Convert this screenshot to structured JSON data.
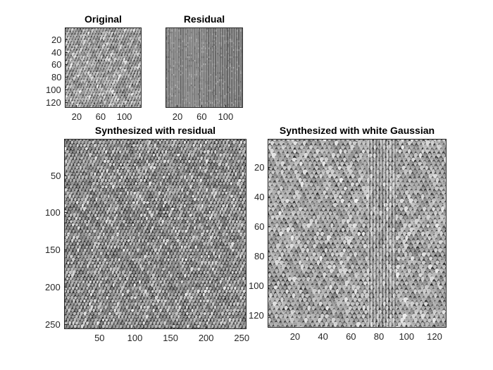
{
  "chart_data": [
    {
      "type": "heatmap",
      "title": "Original",
      "colormap": "gray",
      "xlim": [
        0.5,
        128.5
      ],
      "ylim": [
        0.5,
        128.5
      ],
      "y_reversed": true,
      "xticks": [
        20,
        60,
        100
      ],
      "xtick_labels": [
        "20",
        "60",
        "100"
      ],
      "yticks": [
        20,
        40,
        60,
        80,
        100,
        120
      ],
      "ytick_labels": [
        "20",
        "40",
        "60",
        "80",
        "100",
        "120"
      ],
      "texture": {
        "pattern": "dense oblique dot lattice",
        "contrast": "high",
        "brightness": "mid-gray"
      }
    },
    {
      "type": "heatmap",
      "title": "Residual",
      "colormap": "gray",
      "xlim": [
        0.5,
        128.5
      ],
      "ylim": [
        0.5,
        128.5
      ],
      "y_reversed": true,
      "xticks": [
        20,
        60,
        100
      ],
      "xtick_labels": [
        "20",
        "60",
        "100"
      ],
      "yticks": [],
      "ytick_labels": [],
      "texture": {
        "pattern": "vertical stripes",
        "contrast": "medium",
        "brightness": "light-gray"
      }
    },
    {
      "type": "heatmap",
      "title": "Synthesized with residual",
      "colormap": "gray",
      "xlim": [
        0.5,
        256.5
      ],
      "ylim": [
        0.5,
        256.5
      ],
      "y_reversed": true,
      "xticks": [
        50,
        100,
        150,
        200,
        250
      ],
      "xtick_labels": [
        "50",
        "100",
        "150",
        "200",
        "250"
      ],
      "yticks": [
        50,
        100,
        150,
        200,
        250
      ],
      "ytick_labels": [
        "50",
        "100",
        "150",
        "200",
        "250"
      ],
      "texture": {
        "pattern": "dense oblique dot lattice with faint seam",
        "contrast": "high",
        "brightness": "dark-gray"
      }
    },
    {
      "type": "heatmap",
      "title": "Synthesized with white Gaussian",
      "colormap": "gray",
      "xlim": [
        0.5,
        128.5
      ],
      "ylim": [
        0.5,
        128.5
      ],
      "y_reversed": true,
      "xticks": [
        20,
        40,
        60,
        80,
        100,
        120
      ],
      "xtick_labels": [
        "20",
        "40",
        "60",
        "80",
        "100",
        "120"
      ],
      "yticks": [
        20,
        40,
        60,
        80,
        100,
        120
      ],
      "ytick_labels": [
        "20",
        "40",
        "60",
        "80",
        "100",
        "120"
      ],
      "texture": {
        "pattern": "blotchy lattice with vertical bright band",
        "contrast": "medium",
        "brightness": "mid-gray"
      }
    }
  ]
}
